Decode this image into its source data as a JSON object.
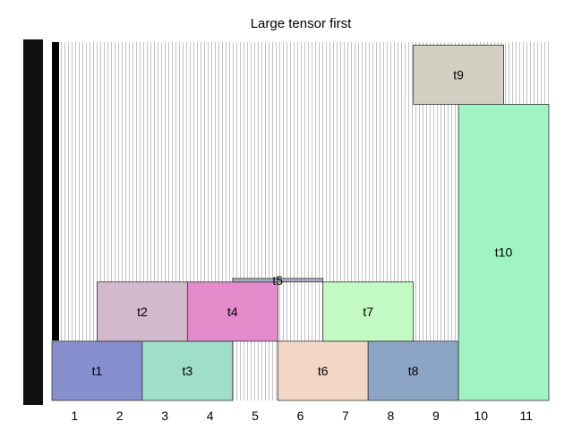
{
  "chart_data": {
    "type": "bar",
    "title": "Large tensor first",
    "xlabel": "",
    "ylabel": "",
    "x_ticks": [
      "1",
      "2",
      "3",
      "4",
      "5",
      "6",
      "7",
      "8",
      "9",
      "10",
      "11"
    ],
    "xlim": [
      0.5,
      11.5
    ],
    "ylim": [
      0,
      6.05
    ],
    "grid": false,
    "background_pattern": "vertical-hatch",
    "tensors": [
      {
        "name": "t1",
        "x_start": 0.5,
        "x_end": 2.5,
        "y_start": 0.0,
        "y_end": 1.0,
        "color": "#8690cf"
      },
      {
        "name": "t3",
        "x_start": 2.5,
        "x_end": 4.5,
        "y_start": 0.0,
        "y_end": 1.0,
        "color": "#9fdec8"
      },
      {
        "name": "t6",
        "x_start": 5.5,
        "x_end": 7.5,
        "y_start": 0.0,
        "y_end": 1.0,
        "color": "#f3d7c6"
      },
      {
        "name": "t8",
        "x_start": 7.5,
        "x_end": 9.5,
        "y_start": 0.0,
        "y_end": 1.0,
        "color": "#8ea6c6"
      },
      {
        "name": "t2",
        "x_start": 1.5,
        "x_end": 3.5,
        "y_start": 1.0,
        "y_end": 2.0,
        "color": "#d3b9ce"
      },
      {
        "name": "t4",
        "x_start": 3.5,
        "x_end": 5.5,
        "y_start": 1.0,
        "y_end": 2.0,
        "color": "#e38bcb"
      },
      {
        "name": "t7",
        "x_start": 6.5,
        "x_end": 8.5,
        "y_start": 1.0,
        "y_end": 2.0,
        "color": "#c3fac3"
      },
      {
        "name": "t5",
        "x_start": 4.5,
        "x_end": 6.5,
        "y_start": 2.0,
        "y_end": 2.06,
        "color": "#a8acc8"
      },
      {
        "name": "t9",
        "x_start": 8.5,
        "x_end": 10.5,
        "y_start": 5.0,
        "y_end": 6.0,
        "color": "#d3d0c3"
      },
      {
        "name": "t10",
        "x_start": 9.5,
        "x_end": 11.5,
        "y_start": 0.0,
        "y_end": 5.0,
        "color": "#a0f4c3"
      }
    ]
  }
}
